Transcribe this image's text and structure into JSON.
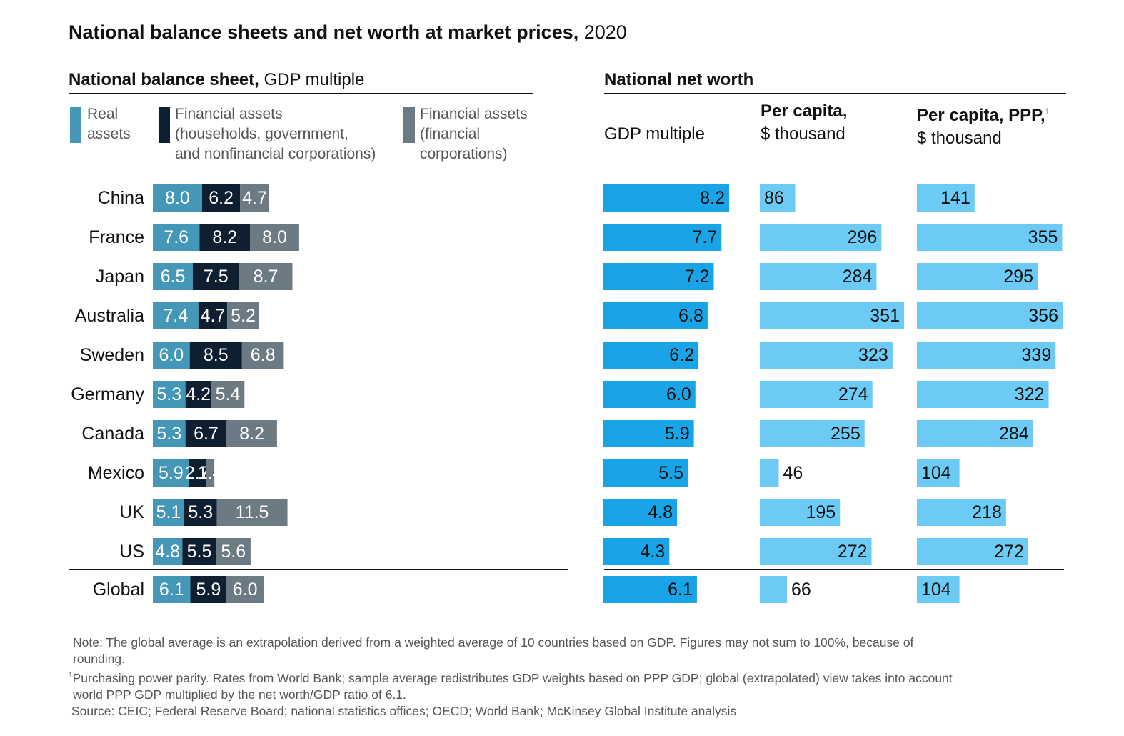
{
  "title": {
    "bold": "National balance sheets and net worth at market prices,",
    "year": "2020"
  },
  "left_panel": {
    "heading_bold": "National balance sheet,",
    "heading_normal": "GDP multiple",
    "legend": [
      {
        "lines": [
          "Real",
          "assets"
        ],
        "color": "#4597b7"
      },
      {
        "lines": [
          "Financial assets",
          "(households, government,",
          "and nonfinancial corporations)"
        ],
        "color": "#0d1f30"
      },
      {
        "lines": [
          "Financial assets",
          "(financial",
          "corporations)"
        ],
        "color": "#6c7a84"
      }
    ]
  },
  "right_panel": {
    "heading": "National net worth",
    "col1": {
      "line1": "",
      "line2": "GDP multiple"
    },
    "col2": {
      "line1": "Per capita,",
      "line2": "$ thousand"
    },
    "col3": {
      "line1": "Per capita, PPP,",
      "sup": "1",
      "line2": "$ thousand"
    }
  },
  "chart_data": [
    {
      "type": "bar",
      "stacked": true,
      "orientation": "horizontal",
      "categories": [
        "China",
        "France",
        "Japan",
        "Australia",
        "Sweden",
        "Germany",
        "Canada",
        "Mexico",
        "UK",
        "US",
        "Global"
      ],
      "series": [
        {
          "name": "Real assets",
          "color": "#4597b7",
          "values": [
            8.0,
            7.6,
            6.5,
            7.4,
            6.0,
            5.3,
            5.3,
            5.9,
            5.1,
            4.8,
            6.1
          ]
        },
        {
          "name": "Financial assets (households, government, and nonfinancial corporations)",
          "color": "#0d1f30",
          "values": [
            6.2,
            8.2,
            7.5,
            4.7,
            8.5,
            4.2,
            6.7,
            2.7,
            5.3,
            5.5,
            5.9
          ]
        },
        {
          "name": "Financial assets (financial corporations)",
          "color": "#6c7a84",
          "values": [
            4.7,
            8.0,
            8.7,
            5.2,
            6.8,
            5.4,
            8.2,
            1.4,
            11.5,
            5.6,
            6.0
          ]
        }
      ],
      "labels": [
        [
          "8.0",
          "7.6",
          "6.5",
          "7.4",
          "6.0",
          "5.3",
          "5.3",
          "5.9",
          "5.1",
          "4.8",
          "6.1"
        ],
        [
          "6.2",
          "8.2",
          "7.5",
          "4.7",
          "8.5",
          "4.2",
          "6.7",
          "2.7",
          "5.3",
          "5.5",
          "5.9"
        ],
        [
          "4.7",
          "8.0",
          "8.7",
          "5.2",
          "6.8",
          "5.4",
          "8.2",
          "1.4",
          "11.5",
          "5.6",
          "6.0"
        ]
      ]
    },
    {
      "type": "bar",
      "orientation": "horizontal",
      "categories": [
        "China",
        "France",
        "Japan",
        "Australia",
        "Sweden",
        "Germany",
        "Canada",
        "Mexico",
        "UK",
        "US",
        "Global"
      ],
      "values": [
        8.2,
        7.7,
        7.2,
        6.8,
        6.2,
        6.0,
        5.9,
        5.5,
        4.8,
        4.3,
        6.1
      ],
      "labels": [
        "8.2",
        "7.7",
        "7.2",
        "6.8",
        "6.2",
        "6.0",
        "5.9",
        "5.5",
        "4.8",
        "4.3",
        "6.1"
      ],
      "color": "#1aa4e8",
      "xlim": [
        0,
        8.2
      ]
    },
    {
      "type": "bar",
      "orientation": "horizontal",
      "categories": [
        "China",
        "France",
        "Japan",
        "Australia",
        "Sweden",
        "Germany",
        "Canada",
        "Mexico",
        "UK",
        "US",
        "Global"
      ],
      "values": [
        86,
        296,
        284,
        351,
        323,
        274,
        255,
        46,
        195,
        272,
        66
      ],
      "labels": [
        "86",
        "296",
        "284",
        "351",
        "323",
        "274",
        "255",
        "46",
        "195",
        "272",
        "66"
      ],
      "color": "#6ccbf4",
      "xlim": [
        0,
        351
      ]
    },
    {
      "type": "bar",
      "orientation": "horizontal",
      "categories": [
        "China",
        "France",
        "Japan",
        "Australia",
        "Sweden",
        "Germany",
        "Canada",
        "Mexico",
        "UK",
        "US",
        "Global"
      ],
      "values": [
        141,
        355,
        295,
        356,
        339,
        322,
        284,
        104,
        218,
        272,
        104
      ],
      "labels": [
        "141",
        "355",
        "295",
        "356",
        "339",
        "322",
        "284",
        "104",
        "218",
        "272",
        "104"
      ],
      "color": "#6ccbf4",
      "xlim": [
        0,
        356
      ]
    }
  ],
  "notes": {
    "note_line1": "Note: The global average is an extrapolation derived from a weighted average of 10 countries based on GDP. Figures may not sum to 100%, because of",
    "note_line2": "rounding.",
    "footnote_sup": "1",
    "footnote_line1": "Purchasing power parity. Rates from World Bank; sample average redistributes GDP weights based on PPP GDP; global (extrapolated) view takes into account",
    "footnote_line2": "world PPP GDP multiplied by the net worth/GDP ratio of 6.1.",
    "source": "Source: CEIC; Federal Reserve Board; national statistics offices; OECD; World Bank; McKinsey Global Institute analysis"
  }
}
